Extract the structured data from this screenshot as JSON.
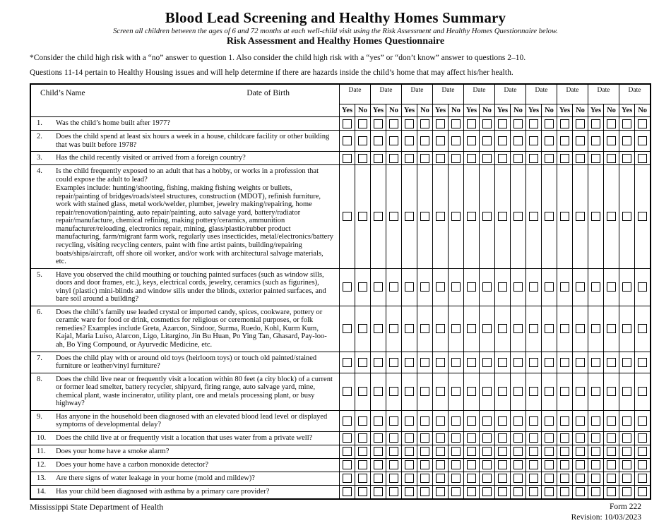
{
  "header": {
    "title": "Blood Lead Screening and Healthy Homes Summary",
    "subtitle": "Screen all children between the ages of 6 and 72 months at each well-child visit using the Risk Assessment and Healthy Homes Questionnaire below.",
    "section_heading": "Risk Assessment and Healthy Homes Questionnaire"
  },
  "instructions": [
    "*Consider the child high risk with a “no” answer to question 1. Also consider the child high risk with a “yes” or “don’t know” answer to questions 2–10.",
    "Questions 11-14 pertain to Healthy Housing issues and will help determine if there are hazards inside the child’s home that may affect his/her health."
  ],
  "table": {
    "name_header": "Child’s Name",
    "dob_header": "Date of Birth",
    "date_header": "Date",
    "yes_label": "Yes",
    "no_label": "No",
    "date_columns": 10,
    "checkbox_state": "unchecked"
  },
  "questions": [
    {
      "number": "1.",
      "text": "Was the child’s home built after 1977?"
    },
    {
      "number": "2.",
      "text": "Does the child spend at least six hours a week in a house, childcare facility or other building that was built before 1978?"
    },
    {
      "number": "3.",
      "text": "Has the child recently visited or arrived from a foreign country?"
    },
    {
      "number": "4.",
      "text": "Is the child frequently exposed to an adult that has a hobby, or works in a profession that could expose the adult to lead?",
      "examples": "Examples include: hunting/shooting, fishing, making fishing weights or bullets, repair/painting of bridges/roads/steel structures, construction (MDOT), refinish furniture, work with stained glass, metal work/welder, plumber, jewelry making/repairing, home repair/renovation/painting, auto repair/painting, auto salvage yard, battery/radiator repair/manufacture, chemical refining, making pottery/ceramics, ammunition manufacturer/reloading, electronics repair, mining, glass/plastic/rubber product manufacturing, farm/migrant farm work, regularly uses insecticides, metal/electronics/battery recycling, visiting recycling centers, paint with fine artist paints, building/repairing boats/ships/aircraft, off shore oil worker, and/or work with architectural salvage materials, etc."
    },
    {
      "number": "5.",
      "text": "Have you observed the child mouthing or touching painted surfaces (such as window sills, doors and door frames, etc.), keys, electrical cords, jewelry, ceramics (such as figurines), vinyl (plastic) mini-blinds and window sills under the blinds, exterior painted surfaces, and bare soil around a building?"
    },
    {
      "number": "6.",
      "text": "Does the child’s family use leaded crystal or imported candy, spices, cookware, pottery or ceramic ware for food or drink, cosmetics for religious or ceremonial purposes, or folk remedies? Examples include Greta, Azarcon, Sindoor, Surma, Ruedo, Kohl, Kurm Kum, Kajal, Maria Luiso, Alarcon, Ligo, Litargino, Jin Bu Huan, Po Ying Tan, Ghasard, Pay-loo-ah, Bo Ying Compound, or Ayurvedic Medicine, etc."
    },
    {
      "number": "7.",
      "text": "Does the child play with or around old toys (heirloom toys) or touch old painted/stained furniture or leather/vinyl furniture?"
    },
    {
      "number": "8.",
      "text": "Does the child live near or frequently visit a location within 80 feet (a city block) of a current or former lead smelter, battery recycler, shipyard, firing range, auto salvage yard, mine, chemical plant, waste incinerator, utility plant, ore and metals processing plant, or busy highway?"
    },
    {
      "number": "9.",
      "text": "Has anyone in the household been diagnosed with an elevated blood lead level or displayed symptoms of developmental delay?"
    },
    {
      "number": "10.",
      "text": "Does the child live at or frequently visit a location that uses water from a private well?"
    },
    {
      "number": "11.",
      "text": "Does your home have a smoke alarm?"
    },
    {
      "number": "12.",
      "text": "Does your home have a carbon monoxide detector?"
    },
    {
      "number": "13.",
      "text": "Are there signs of water leakage in your home (mold and mildew)?"
    },
    {
      "number": "14.",
      "text": "Has your child been diagnosed with asthma by a primary care provider?"
    }
  ],
  "footer": {
    "org": "Mississippi State Department of Health",
    "form_number": "Form 222",
    "revision": "Revision: 10/03/2023"
  },
  "colors": {
    "ink": "#000000",
    "paper": "#ffffff"
  }
}
